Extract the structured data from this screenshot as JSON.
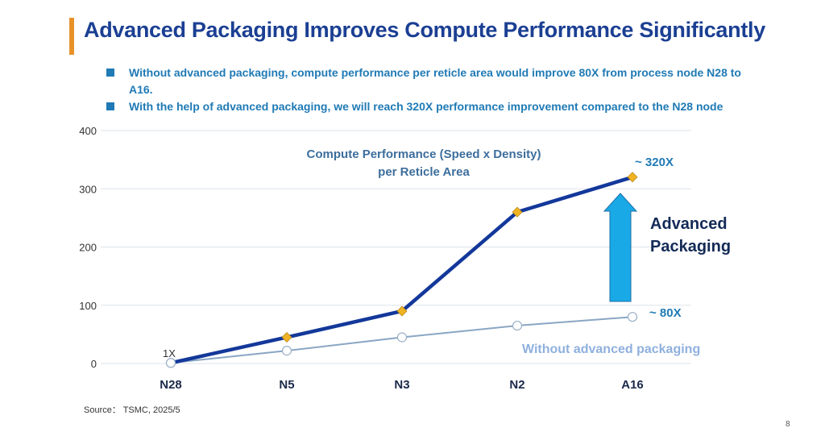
{
  "title": "Advanced Packaging Improves Compute Performance Significantly",
  "bullets": [
    "Without advanced packaging, compute performance per reticle area would improve 80X from process node N28 to A16.",
    "With the help of advanced packaging, we will reach 320X performance improvement compared to the N28 node"
  ],
  "source": "Source： TSMC, 2025/5",
  "page_number": "8",
  "colors": {
    "title": "#1b3f93",
    "accent": "#e8922a",
    "bullets": "#1f7ab5",
    "advanced_line": "#13389a",
    "baseline_line": "#8aa6c4",
    "arrow": "#19a9e6",
    "marker": "#f0b323"
  },
  "chart_data": {
    "type": "line",
    "title": "Compute Performance (Speed x Density)\nper Reticle Area",
    "title_lines": [
      "Compute Performance (Speed x Density)",
      "per Reticle Area"
    ],
    "categories": [
      "N28",
      "N5",
      "N3",
      "N2",
      "A16"
    ],
    "ylim": [
      0,
      400
    ],
    "yticks": [
      0,
      100,
      200,
      300,
      400
    ],
    "grid": true,
    "series": [
      {
        "name": "",
        "values": [
          1,
          45,
          90,
          260,
          320
        ],
        "marker": "diamond"
      },
      {
        "name": "Without advanced packaging",
        "values": [
          1,
          22,
          45,
          65,
          80
        ],
        "marker": "circle"
      }
    ],
    "annotations": {
      "start": "1X",
      "advanced_end": "~ 320X",
      "baseline_end": "~ 80X",
      "arrow_label_lines": [
        "Advanced",
        "Packaging"
      ]
    }
  }
}
